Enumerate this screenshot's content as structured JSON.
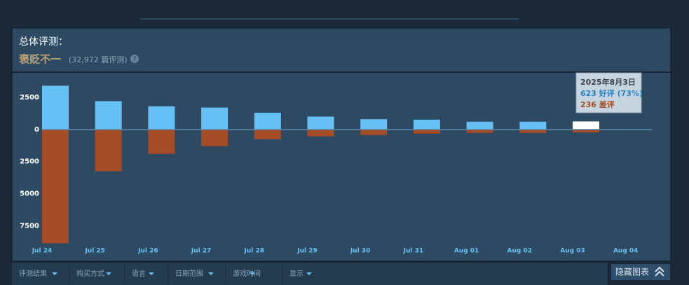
{
  "header": {
    "title": "总体评测：",
    "rating": "褒贬不一",
    "count": "(32,972 篇评测)",
    "help": "?"
  },
  "chart_data": {
    "type": "bar",
    "categories": [
      "Jul 24",
      "Jul 25",
      "Jul 26",
      "Jul 27",
      "Jul 28",
      "Jul 29",
      "Jul 30",
      "Jul 31",
      "Aug 01",
      "Aug 02",
      "Aug 03",
      "Aug 04"
    ],
    "series": [
      {
        "name": "好评",
        "color": "#66c0f4",
        "values": [
          3400,
          2200,
          1800,
          1700,
          1300,
          1000,
          800,
          760,
          600,
          600,
          623,
          20
        ]
      },
      {
        "name": "差评",
        "color": "#a34c25",
        "values": [
          -8860,
          -3260,
          -1900,
          -1300,
          -760,
          -540,
          -430,
          -330,
          -270,
          -270,
          -236,
          -10
        ]
      }
    ],
    "ylim": [
      -9000,
      4350
    ],
    "yticks": [
      {
        "value": 2500,
        "label": "2500"
      },
      0,
      {
        "value": -2500,
        "label": "2500"
      },
      {
        "value": -5000,
        "label": "5000"
      },
      {
        "value": -7500,
        "label": "7500"
      }
    ],
    "highlight_color": "#ffffff",
    "tooltip": {
      "date": "2025年8月3日",
      "positive": "623 好评 (73%)",
      "negative": "236 差评"
    }
  },
  "filters": [
    "评测结果",
    "购买方式",
    "语言",
    "日期范围",
    "游戏时间",
    "显示"
  ],
  "hide_button": "隐藏图表"
}
